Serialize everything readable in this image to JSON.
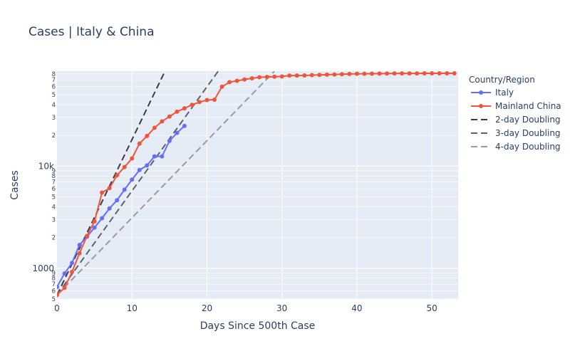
{
  "chart_data": {
    "type": "line",
    "title": "Cases | Italy & China",
    "xlabel": "Days Since 500th Case",
    "ylabel": "Cases",
    "y_scale": "log",
    "xlim": [
      0,
      53.5
    ],
    "ylim": [
      500,
      85000
    ],
    "grid": true,
    "legend_position": "right",
    "legend_title": "Country/Region",
    "x_ticks": [
      0,
      10,
      20,
      30,
      40,
      50
    ],
    "y_major_ticks": [
      {
        "value": 1000,
        "label": "1000"
      },
      {
        "value": 10000,
        "label": "10k"
      }
    ],
    "y_minor_ticks": [
      {
        "value": 500,
        "label": "5"
      },
      {
        "value": 600,
        "label": "6"
      },
      {
        "value": 700,
        "label": "7"
      },
      {
        "value": 800,
        "label": "8"
      },
      {
        "value": 900,
        "label": "9"
      },
      {
        "value": 2000,
        "label": "2"
      },
      {
        "value": 3000,
        "label": "3"
      },
      {
        "value": 4000,
        "label": "4"
      },
      {
        "value": 5000,
        "label": "5"
      },
      {
        "value": 6000,
        "label": "6"
      },
      {
        "value": 7000,
        "label": "7"
      },
      {
        "value": 8000,
        "label": "8"
      },
      {
        "value": 9000,
        "label": "9"
      },
      {
        "value": 20000,
        "label": "2"
      },
      {
        "value": 30000,
        "label": "3"
      },
      {
        "value": 40000,
        "label": "4"
      },
      {
        "value": 50000,
        "label": "5"
      },
      {
        "value": 60000,
        "label": "6"
      },
      {
        "value": 70000,
        "label": "7"
      },
      {
        "value": 80000,
        "label": "8"
      }
    ],
    "series": [
      {
        "name": "Italy",
        "color": "#636efa",
        "style": "line+markers",
        "x": [
          0,
          1,
          2,
          3,
          4,
          5,
          6,
          7,
          8,
          9,
          10,
          11,
          12,
          13,
          14,
          15,
          16,
          17
        ],
        "y": [
          655,
          889,
          1128,
          1694,
          2036,
          2502,
          3089,
          3858,
          4636,
          5883,
          7375,
          9172,
          10149,
          12462,
          12462,
          17660,
          21157,
          24747
        ]
      },
      {
        "name": "Mainland China",
        "color": "#ef553b",
        "style": "line+markers",
        "x": [
          0,
          1,
          2,
          3,
          4,
          5,
          6,
          7,
          8,
          9,
          10,
          11,
          12,
          13,
          14,
          15,
          16,
          17,
          18,
          19,
          20,
          21,
          22,
          23,
          24,
          25,
          26,
          27,
          28,
          29,
          30,
          31,
          32,
          33,
          34,
          35,
          36,
          37,
          38,
          39,
          40,
          41,
          42,
          43,
          44,
          45,
          46,
          47,
          48,
          49,
          50,
          51,
          52,
          53
        ],
        "y": [
          548,
          643,
          920,
          1406,
          2075,
          2877,
          5509,
          6087,
          8141,
          9802,
          11891,
          16630,
          19716,
          23707,
          27440,
          30587,
          34110,
          36814,
          39829,
          42354,
          44386,
          44759,
          59895,
          66358,
          68413,
          70513,
          72434,
          74211,
          74619,
          75077,
          75550,
          77001,
          77022,
          77241,
          77754,
          78166,
          78600,
          78928,
          79356,
          79932,
          80136,
          80261,
          80386,
          80537,
          80690,
          80770,
          80823,
          80860,
          80887,
          80921,
          80932,
          80945,
          80977,
          81003
        ]
      },
      {
        "name": "2-day Doubling",
        "color": "#3b3b48",
        "style": "dash",
        "x": [
          0,
          14.4
        ],
        "y": [
          548,
          85000
        ]
      },
      {
        "name": "3-day Doubling",
        "color": "#60606c",
        "style": "dash",
        "x": [
          0,
          21.5
        ],
        "y": [
          548,
          85000
        ]
      },
      {
        "name": "4-day Doubling",
        "color": "#9a9aa2",
        "style": "dash",
        "x": [
          0,
          29
        ],
        "y": [
          548,
          85000
        ]
      }
    ]
  }
}
